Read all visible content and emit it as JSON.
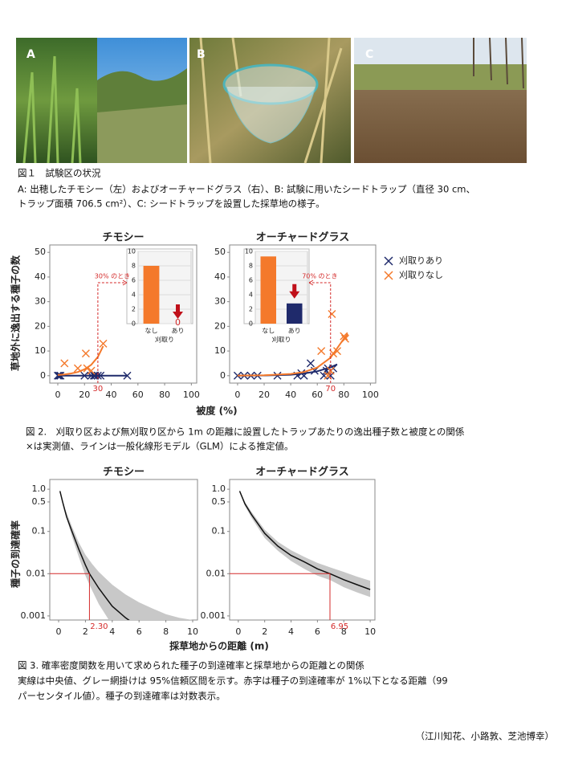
{
  "figure1": {
    "panels": [
      {
        "label": "A"
      },
      {
        "label": "B"
      },
      {
        "label": "C"
      }
    ],
    "caption": [
      "図１　試験区の状況",
      "A: 出穂したチモシー（左）およびオーチャードグラス（右）、B: 試験に用いたシードトラップ（直径 30 cm、",
      "トラップ面積  706.5 cm²）、C: シードトラップを設置した採草地の様子。"
    ]
  },
  "figure2": {
    "y_label": "草地外に逸出する種子の数",
    "x_label": "被度 (%)",
    "legend": [
      {
        "name": "刈取りあり",
        "color": "#1f2a6b"
      },
      {
        "name": "刈取りなし",
        "color": "#f4792b"
      }
    ],
    "charts": [
      {
        "type": "scatter",
        "title": "チモシー",
        "xlim": [
          -6,
          104
        ],
        "ylim": [
          -3,
          53
        ],
        "xticks": [
          0,
          20,
          40,
          60,
          80,
          100
        ],
        "yticks": [
          0,
          10,
          20,
          30,
          40,
          50
        ],
        "grid": false,
        "series": [
          {
            "x": [
              0,
              1,
              2,
              20,
              25,
              27,
              28,
              30,
              32,
              52
            ],
            "values": [
              0,
              0,
              0,
              0,
              0,
              0,
              0,
              0,
              0,
              0
            ],
            "fit_x": [
              0,
              52
            ],
            "fit_values": [
              0,
              0
            ]
          },
          {
            "x": [
              5,
              15,
              21,
              22,
              25,
              34
            ],
            "values": [
              5,
              3,
              9,
              3,
              2,
              13
            ],
            "fit_x": [
              0,
              5,
              10,
              15,
              20,
              25,
              30,
              34
            ],
            "fit_values": [
              0.3,
              0.5,
              0.9,
              1.5,
              2.6,
              4.4,
              7.6,
              12
            ]
          }
        ],
        "marker": {
          "x": 30,
          "text": "30% のとき"
        },
        "inset": {
          "type": "bar",
          "categories": [
            "なし",
            "あり"
          ],
          "values": [
            8,
            0
          ],
          "value_labels": [
            null,
            "0"
          ],
          "colors": [
            "#f4792b",
            "#1f2a6b"
          ],
          "ylim": [
            0,
            10
          ],
          "yticks": [
            0,
            2,
            4,
            6,
            8,
            10
          ],
          "x_label": "刈取り",
          "grid": true
        }
      },
      {
        "type": "scatter",
        "title": "オーチャードグラス",
        "xlim": [
          -6,
          104
        ],
        "ylim": [
          -3,
          53
        ],
        "xticks": [
          0,
          20,
          40,
          60,
          80,
          100
        ],
        "yticks": [
          0,
          10,
          20,
          30,
          40,
          50
        ],
        "grid": false,
        "series": [
          {
            "x": [
              0,
              5,
              10,
              15,
              30,
              45,
              48,
              50,
              55,
              58,
              65,
              67,
              68,
              70,
              72
            ],
            "values": [
              0,
              0,
              0,
              0,
              0,
              0,
              1,
              0,
              5,
              2,
              0,
              2,
              3,
              0,
              3
            ],
            "fit_x": [
              0,
              20,
              40,
              50,
              60,
              70,
              75
            ],
            "fit_values": [
              0,
              0.1,
              0.4,
              0.9,
              1.8,
              3.4,
              4.6
            ]
          },
          {
            "x": [
              63,
              68,
              70,
              71,
              72,
              75,
              80,
              81
            ],
            "values": [
              10,
              0,
              2,
              25,
              9,
              10,
              16,
              15
            ],
            "fit_x": [
              0,
              20,
              40,
              50,
              60,
              70,
              80,
              83
            ],
            "fit_values": [
              0.05,
              0.2,
              0.7,
              1.5,
              3.3,
              7.3,
              15,
              17
            ]
          }
        ],
        "marker": {
          "x": 70,
          "text": "70% のとき"
        },
        "inset": {
          "type": "bar",
          "categories": [
            "なし",
            "あり"
          ],
          "values": [
            9.3,
            2.8
          ],
          "colors": [
            "#f4792b",
            "#1f2a6b"
          ],
          "ylim": [
            0,
            10
          ],
          "yticks": [
            0,
            2,
            4,
            6,
            8,
            10
          ],
          "x_label": "刈取り",
          "grid": true
        }
      }
    ],
    "caption": [
      "図 2.　刈取り区および無刈取り区から 1m の距離に設置したトラップあたりの逸出種子数と被度との関係",
      "×は実測値、ラインは一般化線形モデル（GLM）による推定値。"
    ]
  },
  "figure3": {
    "y_label": "種子の到達確率",
    "x_label": "採草地からの距離 (m)",
    "charts": [
      {
        "type": "line",
        "title": "チモシー",
        "log_y": true,
        "xlim": [
          -0.66,
          10.36
        ],
        "ylim": [
          0.0008,
          1.7
        ],
        "xticks": [
          0,
          2,
          4,
          6,
          8,
          10
        ],
        "yticks": [
          {
            "value": 1,
            "label": "1.0"
          },
          0.5,
          0.1,
          0.01,
          0.001
        ],
        "median": {
          "color": "#111111",
          "x": [
            0.1,
            0.3,
            0.6,
            1,
            1.5,
            2,
            2.3,
            3,
            4,
            5,
            5.8
          ],
          "values": [
            0.9,
            0.5,
            0.22,
            0.1,
            0.038,
            0.016,
            0.01,
            0.0045,
            0.0017,
            0.0009,
            0.0006
          ]
        },
        "band": {
          "color": "#c8c8c8",
          "x": [
            0.1,
            0.5,
            1,
            1.5,
            2,
            2.5,
            3,
            4,
            5,
            6,
            7,
            8,
            9,
            10
          ],
          "upper": [
            0.95,
            0.33,
            0.13,
            0.055,
            0.028,
            0.017,
            0.011,
            0.0055,
            0.0032,
            0.0021,
            0.0015,
            0.0011,
            0.0009,
            0.0008
          ],
          "lower": [
            0.85,
            0.26,
            0.075,
            0.025,
            0.009,
            0.004,
            0.0019,
            0.0006,
            0.0002,
            0.0001,
            5e-05,
            3e-05,
            2e-05,
            1e-05
          ]
        },
        "cutoff": {
          "x": {
            "value": 2.3,
            "label": "2.30"
          },
          "y": 0.01
        }
      },
      {
        "type": "line",
        "title": "オーチャードグラス",
        "log_y": true,
        "xlim": [
          -0.66,
          10.36
        ],
        "ylim": [
          0.0008,
          1.7
        ],
        "xticks": [
          0,
          2,
          4,
          6,
          8,
          10
        ],
        "yticks": [
          {
            "value": 1,
            "label": "1.0"
          },
          0.5,
          0.1,
          0.01,
          0.001
        ],
        "median": {
          "color": "#111111",
          "x": [
            0.1,
            0.5,
            1,
            2,
            3,
            4,
            5,
            6,
            6.95,
            8,
            9,
            10
          ],
          "values": [
            0.9,
            0.45,
            0.25,
            0.09,
            0.045,
            0.027,
            0.019,
            0.013,
            0.01,
            0.0072,
            0.0055,
            0.0042
          ]
        },
        "band": {
          "color": "#c8c8c8",
          "x": [
            0.1,
            0.5,
            1,
            2,
            3,
            4,
            5,
            6,
            7,
            8,
            9,
            10
          ],
          "upper": [
            0.95,
            0.5,
            0.29,
            0.11,
            0.057,
            0.036,
            0.025,
            0.018,
            0.014,
            0.011,
            0.0085,
            0.0068
          ],
          "lower": [
            0.85,
            0.4,
            0.21,
            0.07,
            0.035,
            0.02,
            0.013,
            0.009,
            0.007,
            0.0048,
            0.0036,
            0.0028
          ]
        },
        "cutoff": {
          "x": 6.95,
          "y": 0.01
        }
      }
    ],
    "caption": [
      "図 3. 確率密度関数を用いて求められた種子の到達確率と採草地からの距離との関係",
      "実線は中央値、グレー網掛けは 95%信頼区間を示す。赤字は種子の到達確率が 1%以下となる距離（99",
      "パーセンタイル値）。種子の到達確率は対数表示。"
    ]
  },
  "authors": "（江川知花、小路敦、芝池博幸）"
}
